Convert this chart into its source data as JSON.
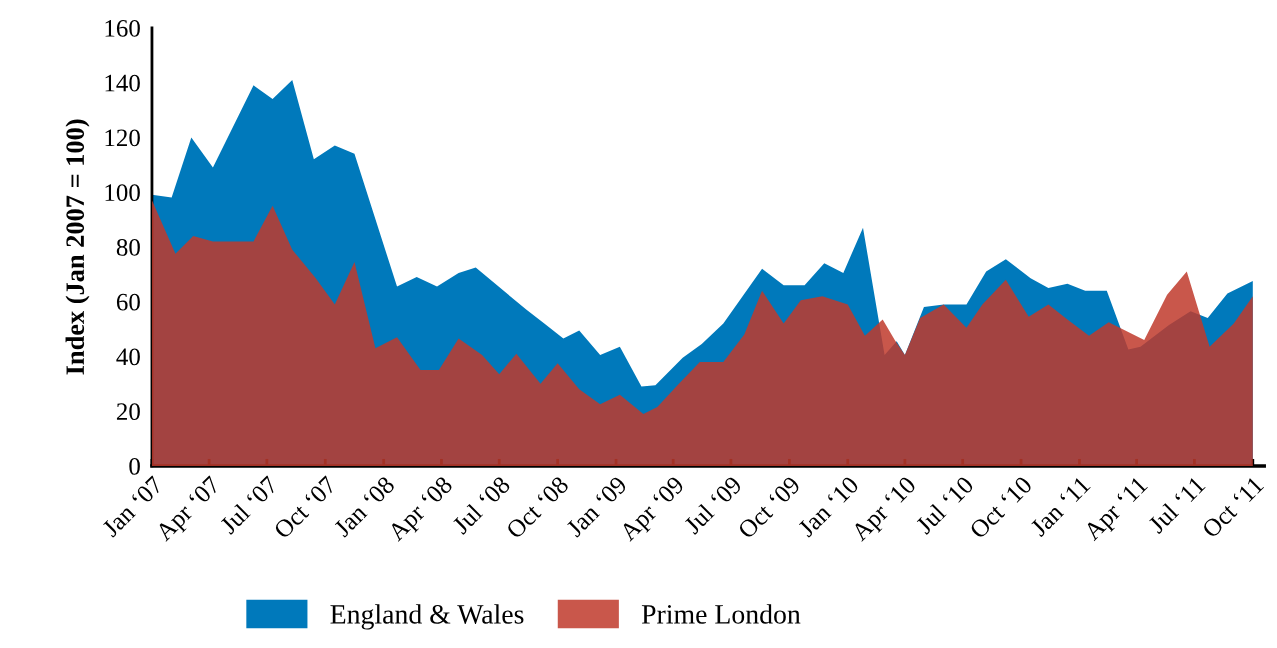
{
  "chart_data": {
    "type": "area",
    "ylabel": "Index (Jan 2007 = 100)",
    "xlim": [
      "2007-01-01",
      "2011-10-19"
    ],
    "ylim": [
      0,
      160
    ],
    "xticks": [
      {
        "value": "2007-01",
        "label": "Jan ‘07"
      },
      {
        "value": "2007-04",
        "label": "Apr ‘07"
      },
      {
        "value": "2007-07",
        "label": "Jul ‘07"
      },
      {
        "value": "2007-10",
        "label": "Oct ‘07"
      },
      {
        "value": "2008-01",
        "label": "Jan ‘08"
      },
      {
        "value": "2008-04",
        "label": "Apr ‘08"
      },
      {
        "value": "2008-07",
        "label": "Jul ‘08"
      },
      {
        "value": "2008-10",
        "label": "Oct ‘08"
      },
      {
        "value": "2009-01",
        "label": "Jan ‘09"
      },
      {
        "value": "2009-04",
        "label": "Apr ‘09"
      },
      {
        "value": "2009-07",
        "label": "Jul ‘09"
      },
      {
        "value": "2009-10",
        "label": "Oct ‘09"
      },
      {
        "value": "2010-01",
        "label": "Jan ‘10"
      },
      {
        "value": "2010-04",
        "label": "Apr ‘10"
      },
      {
        "value": "2010-07",
        "label": "Jul ‘10"
      },
      {
        "value": "2010-10",
        "label": "Oct ‘10"
      },
      {
        "value": "2011-01",
        "label": "Jan ‘11"
      },
      {
        "value": "2011-04",
        "label": "Apr ‘11"
      },
      {
        "value": "2011-07",
        "label": "Jul ‘11"
      },
      {
        "value": "2011-10",
        "label": "Oct ‘11"
      }
    ],
    "yticks": [
      0,
      20,
      40,
      60,
      80,
      100,
      120,
      140,
      160
    ],
    "legend": "bottom",
    "grid": false,
    "series": [
      {
        "name": "England & Wales",
        "color": "#0079bb",
        "x": [
          "2007-01-01",
          "2007-02-01",
          "2007-03-04",
          "2007-04-07",
          "2007-06-10",
          "2007-07-10",
          "2007-08-10",
          "2007-09-13",
          "2007-10-16",
          "2007-11-16",
          "2008-01-22",
          "2008-02-22",
          "2008-03-25",
          "2008-04-28",
          "2008-05-25",
          "2008-08-13",
          "2008-09-10",
          "2008-10-10",
          "2008-11-04",
          "2008-12-07",
          "2009-01-07",
          "2009-02-10",
          "2009-03-04",
          "2009-04-16",
          "2009-05-16",
          "2009-06-19",
          "2009-08-19",
          "2009-09-22",
          "2009-10-25",
          "2009-11-25",
          "2009-12-25",
          "2010-01-25",
          "2010-02-28",
          "2010-03-19",
          "2010-04-01",
          "2010-05-01",
          "2010-06-01",
          "2010-07-07",
          "2010-08-07",
          "2010-09-07",
          "2010-10-16",
          "2010-11-13",
          "2010-12-13",
          "2011-01-10",
          "2011-02-13",
          "2011-03-19",
          "2011-04-07",
          "2011-05-22",
          "2011-06-25",
          "2011-07-22",
          "2011-08-22",
          "2011-10-01"
        ],
        "values": [
          99,
          98,
          120,
          109,
          139,
          134,
          141,
          112,
          117,
          114,
          65.5,
          69,
          65.5,
          70.5,
          72.5,
          57,
          52,
          46.5,
          49.5,
          40.5,
          43.5,
          29,
          29.5,
          39.5,
          44.5,
          52,
          72,
          66,
          66,
          74,
          70.5,
          87,
          40.5,
          45.5,
          40.5,
          58,
          59,
          59,
          71,
          75.5,
          68.5,
          65,
          66.5,
          64,
          64,
          42.5,
          43.5,
          51.5,
          56.5,
          54,
          63,
          67.5
        ]
      },
      {
        "name": "Prime London",
        "color": "#c0392b",
        "x": [
          "2007-01-01",
          "2007-02-07",
          "2007-03-07",
          "2007-04-07",
          "2007-06-10",
          "2007-07-10",
          "2007-08-10",
          "2007-09-16",
          "2007-10-16",
          "2007-11-16",
          "2007-12-19",
          "2008-01-22",
          "2008-02-28",
          "2008-03-28",
          "2008-04-28",
          "2008-06-04",
          "2008-07-01",
          "2008-07-28",
          "2008-09-04",
          "2008-10-01",
          "2008-11-04",
          "2008-12-07",
          "2009-01-07",
          "2009-02-13",
          "2009-03-07",
          "2009-04-10",
          "2009-05-13",
          "2009-06-19",
          "2009-07-22",
          "2009-08-19",
          "2009-09-22",
          "2009-10-19",
          "2009-11-22",
          "2010-01-01",
          "2010-01-28",
          "2010-02-25",
          "2010-03-16",
          "2010-04-01",
          "2010-04-25",
          "2010-06-01",
          "2010-07-07",
          "2010-08-01",
          "2010-09-07",
          "2010-10-13",
          "2010-11-13",
          "2010-12-13",
          "2011-01-16",
          "2011-02-16",
          "2011-04-13",
          "2011-05-19",
          "2011-06-19",
          "2011-07-25",
          "2011-09-01",
          "2011-10-01"
        ],
        "values": [
          97,
          77.5,
          84,
          82,
          82,
          95,
          79,
          68.5,
          59,
          74.5,
          43,
          47,
          35,
          35,
          46.5,
          40.5,
          33.5,
          41,
          30,
          37.5,
          28,
          22.5,
          26,
          19,
          21.5,
          30,
          38,
          38,
          48,
          64,
          52,
          60.5,
          62,
          59,
          47.5,
          53.5,
          46,
          40.5,
          54,
          59,
          50.5,
          59,
          68,
          54.5,
          59,
          53.5,
          47.5,
          52.5,
          46,
          62.5,
          71,
          43.5,
          52,
          62
        ]
      }
    ]
  }
}
